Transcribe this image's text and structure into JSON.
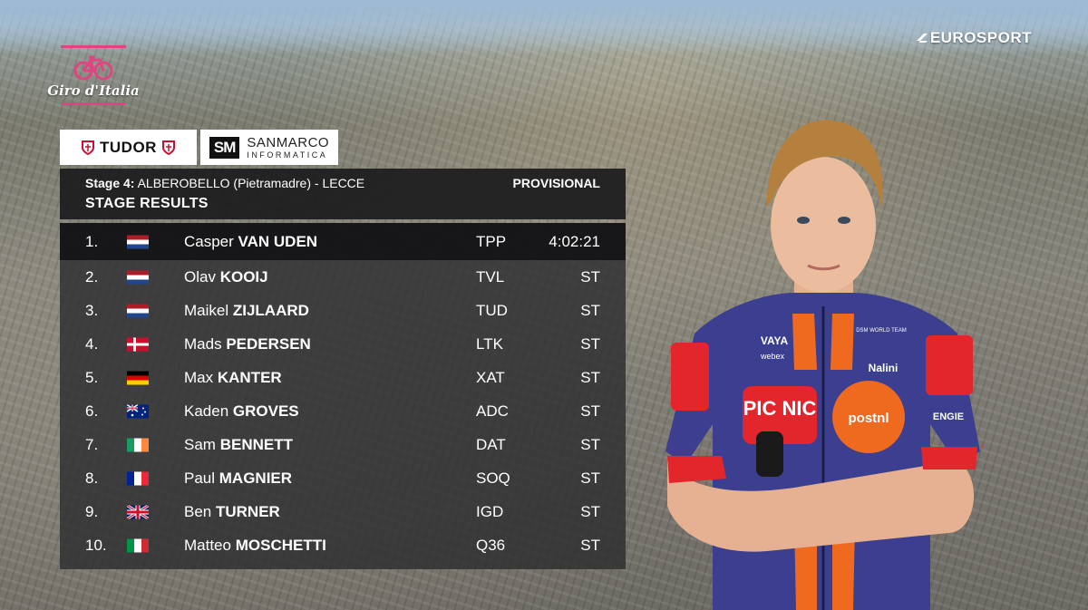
{
  "broadcaster": "EUROSPORT",
  "race_logo_text": "Giro d'Italia",
  "sponsors": {
    "left": "TUDOR",
    "right_mark": "SM",
    "right_line1": "SANMARCO",
    "right_line2": "INFORMATICA"
  },
  "header": {
    "stage_label": "Stage 4:",
    "route": "ALBEROBELLO (Pietramadre) - LECCE",
    "status": "PROVISIONAL",
    "title": "STAGE RESULTS"
  },
  "results": [
    {
      "pos": "1.",
      "flag": "NL",
      "first": "Casper",
      "last": "VAN UDEN",
      "team": "TPP",
      "time": "4:02:21"
    },
    {
      "pos": "2.",
      "flag": "NL",
      "first": "Olav",
      "last": "KOOIJ",
      "team": "TVL",
      "time": "ST"
    },
    {
      "pos": "3.",
      "flag": "NL",
      "first": "Maikel",
      "last": "ZIJLAARD",
      "team": "TUD",
      "time": "ST"
    },
    {
      "pos": "4.",
      "flag": "DK",
      "first": "Mads",
      "last": "PEDERSEN",
      "team": "LTK",
      "time": "ST"
    },
    {
      "pos": "5.",
      "flag": "DE",
      "first": "Max",
      "last": "KANTER",
      "team": "XAT",
      "time": "ST"
    },
    {
      "pos": "6.",
      "flag": "AU",
      "first": "Kaden",
      "last": "GROVES",
      "team": "ADC",
      "time": "ST"
    },
    {
      "pos": "7.",
      "flag": "IE",
      "first": "Sam",
      "last": "BENNETT",
      "team": "DAT",
      "time": "ST"
    },
    {
      "pos": "8.",
      "flag": "FR",
      "first": "Paul",
      "last": "MAGNIER",
      "team": "SOQ",
      "time": "ST"
    },
    {
      "pos": "9.",
      "flag": "GB",
      "first": "Ben",
      "last": "TURNER",
      "team": "IGD",
      "time": "ST"
    },
    {
      "pos": "10.",
      "flag": "IT",
      "first": "Matteo",
      "last": "MOSCHETTI",
      "team": "Q36",
      "time": "ST"
    }
  ],
  "jersey_text": {
    "brand1": "PIC NIC",
    "brand2": "postnl",
    "brand3": "VAYA",
    "brand4": "webex",
    "brand5": "Nalini",
    "brand6": "ENGIE",
    "brand7": "DSM WORLD TEAM"
  },
  "colors": {
    "jersey_blue": "#3c3f8f",
    "jersey_orange": "#ef6a1f",
    "picnic_red": "#e3262c",
    "giro_pink": "#e0457f"
  }
}
